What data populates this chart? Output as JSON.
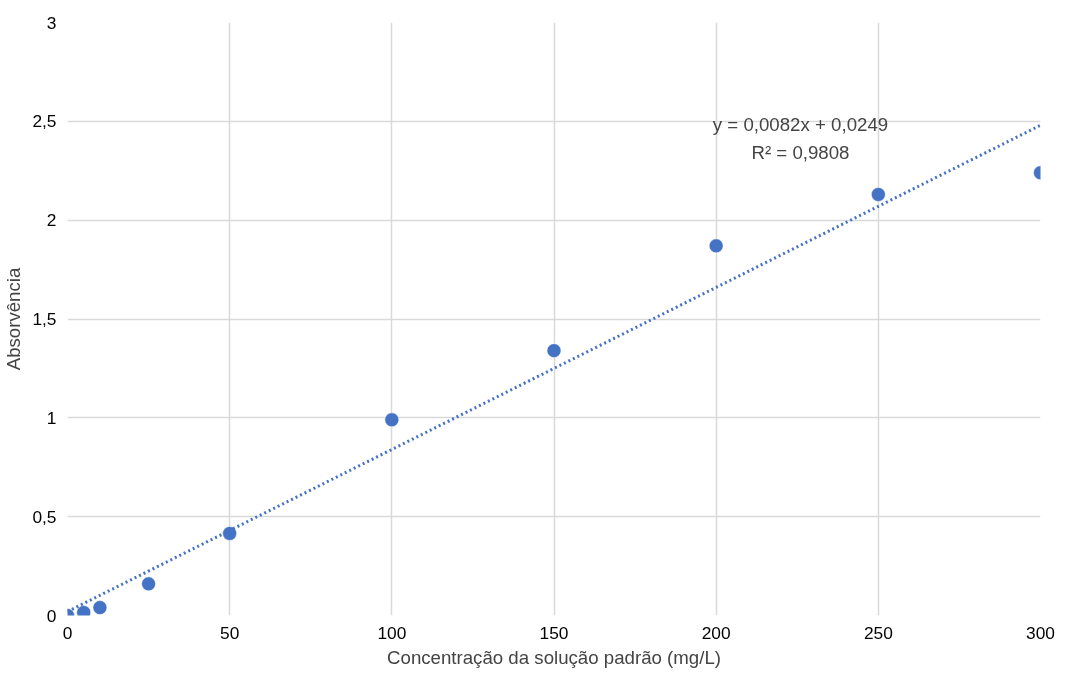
{
  "chart_data": {
    "type": "scatter",
    "xlabel": "Concentração da solução padrão (mg/L)",
    "ylabel": "Absorvência",
    "series": [
      {
        "color": "#4472c4",
        "marker": "circle",
        "x": [
          0,
          5,
          10,
          25,
          50,
          100,
          150,
          200,
          250,
          300
        ],
        "values": [
          0.0,
          0.015,
          0.04,
          0.16,
          0.415,
          0.99,
          1.34,
          1.87,
          2.13,
          2.24
        ]
      },
      {
        "type": "line",
        "color": "#4472c4",
        "line_style": "dotted",
        "marker": "none",
        "x": [
          0,
          300
        ],
        "values": [
          0.02,
          2.48
        ]
      }
    ],
    "annotations": [
      "y = 0,0082x + 0,0249",
      "R² = 0,9808"
    ],
    "xlim": [
      0,
      300
    ],
    "ylim": [
      0,
      3
    ],
    "xticks": [
      0,
      50,
      100,
      150,
      200,
      250,
      300
    ],
    "yticks": [
      0,
      {
        "value": 0.5,
        "label": "0,5"
      },
      1,
      {
        "value": 1.5,
        "label": "1,5"
      },
      2,
      {
        "value": 2.5,
        "label": "2,5"
      },
      3
    ],
    "grid": true
  }
}
